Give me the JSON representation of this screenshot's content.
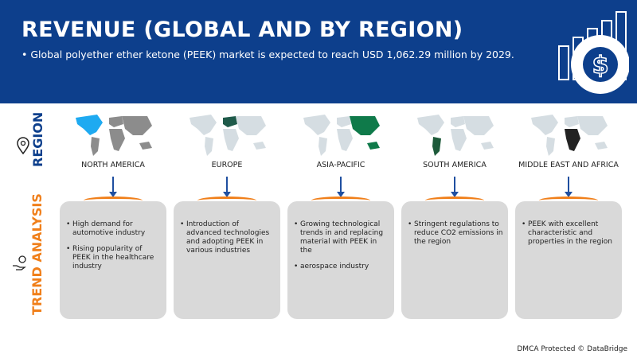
{
  "header": {
    "title": "REVENUE (GLOBAL AND BY REGION)",
    "subtitle": "Global polyether ether ketone (PEEK) market is expected to reach USD 1,062.29 million by 2029.",
    "icon": "revenue-growth-dollar-icon"
  },
  "labels": {
    "region": "REGION",
    "trend": "TREND ANALYSIS"
  },
  "regions": [
    {
      "name": "NORTH AMERICA",
      "highlight": "#1eaaf1",
      "base": "#8c8c8c",
      "points": [
        "High demand for automotive industry",
        "Rising popularity of PEEK in the healthcare industry"
      ]
    },
    {
      "name": "EUROPE",
      "highlight": "#1f5a4a",
      "base": "#d5dde2",
      "points": [
        "Introduction of advanced technologies and adopting PEEK in various industries"
      ]
    },
    {
      "name": "ASIA-PACIFIC",
      "highlight": "#0f7a4a",
      "base": "#d5dde2",
      "points": [
        "Growing technological trends in and replacing material with PEEK in the",
        "aerospace industry"
      ]
    },
    {
      "name": "SOUTH AMERICA",
      "highlight": "#1d5a3a",
      "base": "#d5dde2",
      "points": [
        "Stringent regulations to reduce CO2 emissions in the region"
      ]
    },
    {
      "name": "MIDDLE EAST AND AFRICA",
      "highlight": "#222222",
      "base": "#d5dde2",
      "points": [
        "PEEK with excellent characteristic and properties in the region"
      ]
    }
  ],
  "footer": "DMCA Protected © DataBridge"
}
